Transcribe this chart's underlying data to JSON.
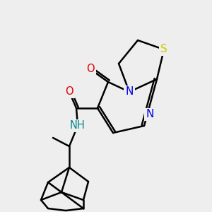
{
  "bg_color": "#eeeeee",
  "atom_colors": {
    "C": "#000000",
    "N": "#0000ff",
    "O": "#ff0000",
    "S": "#cccc00",
    "H": "#000000"
  },
  "line_color": "#000000",
  "line_width": 1.8,
  "font_size": 11
}
